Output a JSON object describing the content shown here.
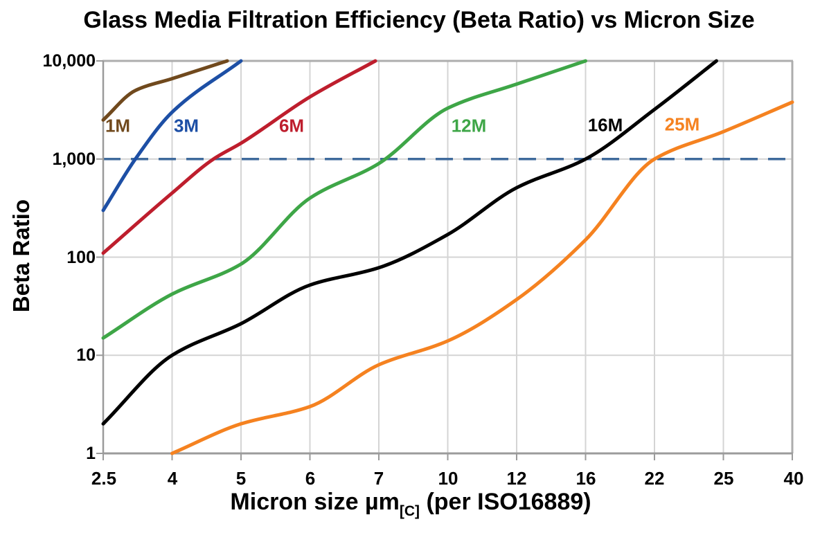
{
  "chart_data": {
    "type": "line",
    "title": "Glass Media Filtration Efficiency (Beta Ratio) vs Micron Size",
    "x_axis": {
      "title_main": "Micron size µm",
      "title_sub": "[C]",
      "title_suffix": " (per ISO16889)",
      "categories": [
        2.5,
        4,
        5,
        6,
        7,
        10,
        12,
        16,
        22,
        25,
        40
      ],
      "tick_labels": [
        "2.5",
        "4",
        "5",
        "6",
        "7",
        "10",
        "12",
        "16",
        "22",
        "25",
        "40"
      ]
    },
    "y_axis": {
      "title": "Beta Ratio",
      "scale": "log",
      "min": 1,
      "max": 10000,
      "tick_values": [
        10000,
        1000,
        100,
        10,
        1
      ],
      "tick_labels": [
        "10,000",
        "1,000",
        "100",
        "10",
        "1"
      ]
    },
    "grid": "on",
    "legend_position": "inline-labels",
    "threshold_line": {
      "value": 1000,
      "style": "dashed",
      "color": "#3f6a9c"
    },
    "series": [
      {
        "name": "1M",
        "label": "1M",
        "color": "#70491d",
        "points": [
          [
            2.5,
            2500
          ],
          [
            3.2,
            5000
          ],
          [
            4,
            6600
          ],
          [
            4.8,
            10000
          ]
        ]
      },
      {
        "name": "3M",
        "label": "3M",
        "color": "#1d4fa5",
        "points": [
          [
            2.5,
            300
          ],
          [
            3.2,
            1000
          ],
          [
            4,
            3000
          ],
          [
            5,
            10000
          ]
        ]
      },
      {
        "name": "6M",
        "label": "6M",
        "color": "#be1e2d",
        "points": [
          [
            2.5,
            110
          ],
          [
            4,
            450
          ],
          [
            4.6,
            1000
          ],
          [
            5,
            1450
          ],
          [
            6,
            4300
          ],
          [
            6.95,
            10000
          ]
        ]
      },
      {
        "name": "12M",
        "label": "12M",
        "color": "#3ea647",
        "points": [
          [
            2.5,
            15
          ],
          [
            4,
            42
          ],
          [
            5,
            85
          ],
          [
            6,
            400
          ],
          [
            7,
            900
          ],
          [
            10,
            3300
          ],
          [
            12,
            5800
          ],
          [
            16,
            10000
          ]
        ]
      },
      {
        "name": "16M",
        "label": "16M",
        "color": "#000000",
        "points": [
          [
            2.5,
            2
          ],
          [
            4,
            10
          ],
          [
            5,
            21
          ],
          [
            6,
            52
          ],
          [
            7,
            78
          ],
          [
            10,
            170
          ],
          [
            12,
            510
          ],
          [
            16,
            1000
          ],
          [
            22,
            3200
          ],
          [
            24.7,
            10000
          ]
        ]
      },
      {
        "name": "25M",
        "label": "25M",
        "color": "#f58220",
        "points": [
          [
            4,
            1
          ],
          [
            5,
            2
          ],
          [
            6,
            3
          ],
          [
            7,
            8
          ],
          [
            10,
            14
          ],
          [
            12,
            37
          ],
          [
            16,
            150
          ],
          [
            22,
            1000
          ],
          [
            25,
            1900
          ],
          [
            40,
            3800
          ]
        ]
      }
    ]
  }
}
